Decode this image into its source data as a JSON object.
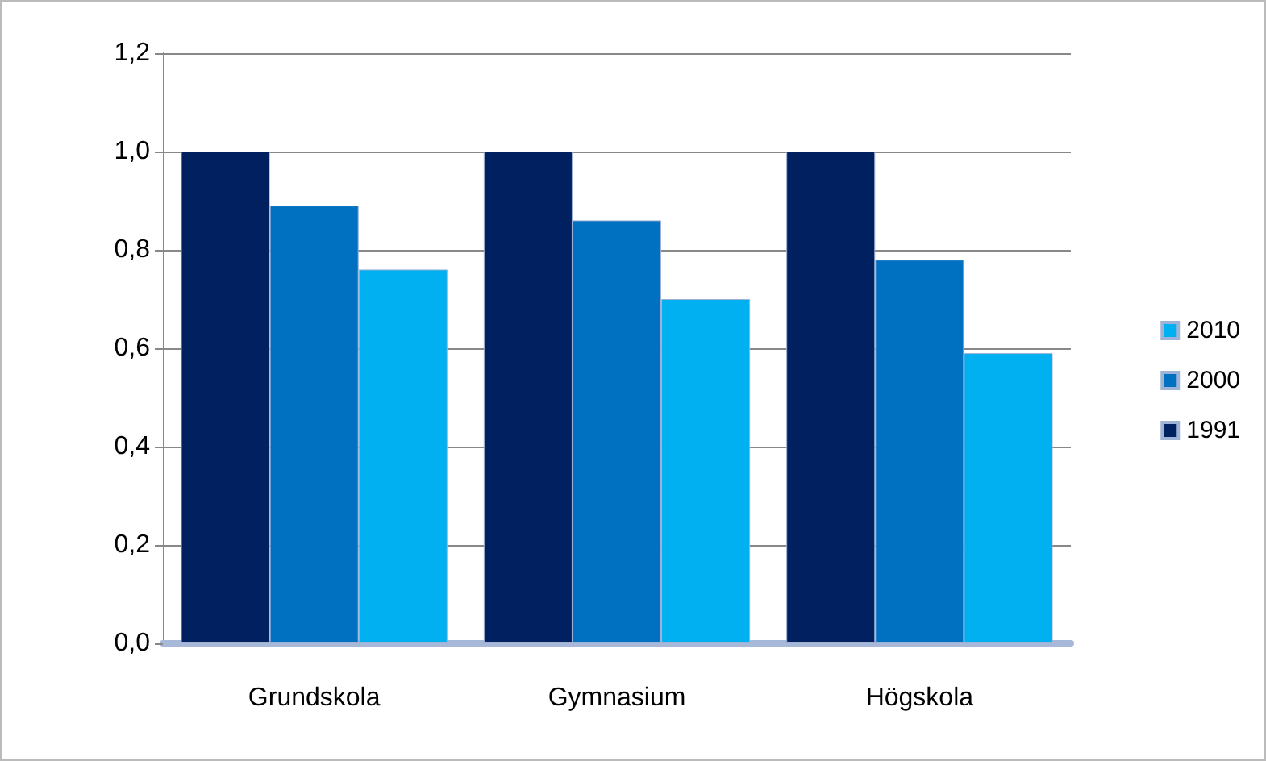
{
  "chart_data": {
    "type": "bar",
    "categories": [
      "Grundskola",
      "Gymnasium",
      "Högskola"
    ],
    "series": [
      {
        "name": "1991",
        "color": "#002060",
        "values": [
          1.0,
          1.0,
          1.0
        ]
      },
      {
        "name": "2000",
        "color": "#0070c0",
        "values": [
          0.89,
          0.86,
          0.78
        ]
      },
      {
        "name": "2010",
        "color": "#00b0f0",
        "values": [
          0.76,
          0.7,
          0.59
        ]
      }
    ],
    "ylim": [
      0,
      1.2
    ],
    "yticks": [
      {
        "value": 0,
        "label": "0,0"
      },
      {
        "value": 0.2,
        "label": "0,2"
      },
      {
        "value": 0.4,
        "label": "0,4"
      },
      {
        "value": 0.6,
        "label": "0,6"
      },
      {
        "value": 0.8,
        "label": "0,8"
      },
      {
        "value": 1.0,
        "label": "1,0"
      },
      {
        "value": 1.2,
        "label": "1,2"
      }
    ],
    "grid": "y",
    "legend": "right"
  }
}
